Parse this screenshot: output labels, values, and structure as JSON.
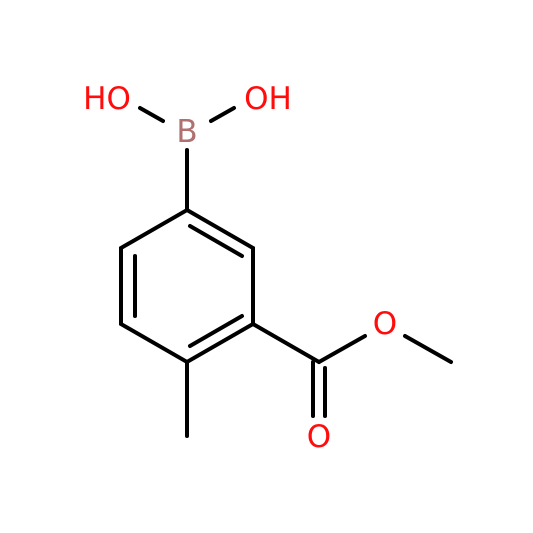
{
  "nodes": [
    {
      "label": "HO"
    },
    {
      "label": "B"
    },
    {
      "label": "OH"
    },
    {
      "label": "O"
    },
    {
      "label": "O"
    }
  ]
}
